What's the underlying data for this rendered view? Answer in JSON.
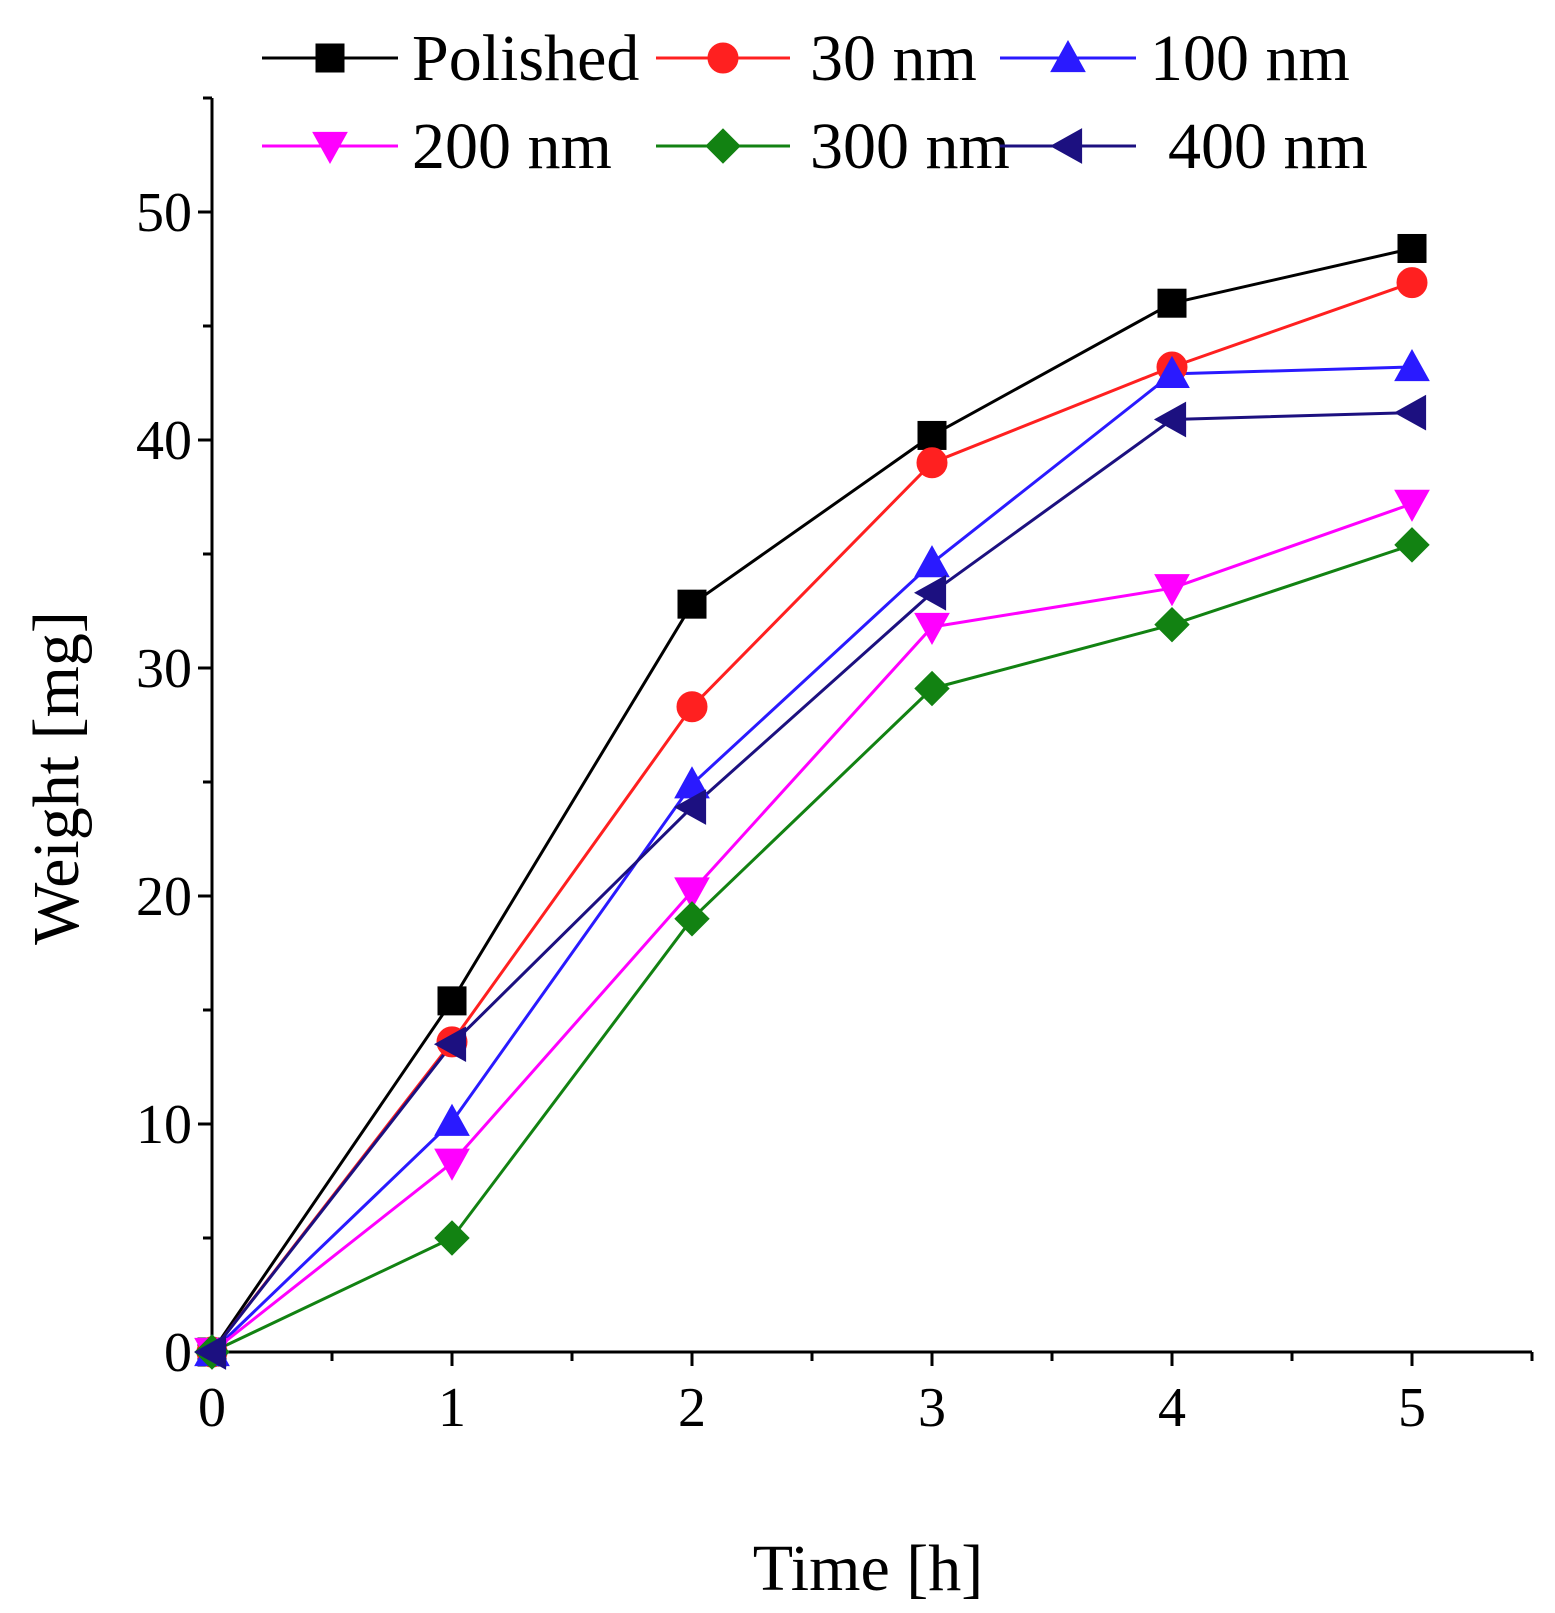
{
  "chart_data": {
    "type": "line",
    "title": "",
    "xlabel": "Time [h]",
    "ylabel": "Weight [mg]",
    "xlim": [
      0,
      5.5
    ],
    "ylim": [
      0,
      55
    ],
    "x_ticks": [
      0,
      1,
      2,
      3,
      4,
      5
    ],
    "y_ticks": [
      0,
      10,
      20,
      30,
      40,
      50
    ],
    "x_minor_ticks": [
      0.5,
      1.5,
      2.5,
      3.5,
      4.5,
      5.5
    ],
    "y_minor_ticks": [
      5,
      15,
      25,
      35,
      45,
      55
    ],
    "legend_position": "top",
    "grid": false,
    "x": [
      0,
      1,
      2,
      3,
      4,
      5
    ],
    "series": [
      {
        "name": "Polished",
        "color": "#000000",
        "marker": "square",
        "values": [
          0,
          15.4,
          32.8,
          40.2,
          46.0,
          48.4
        ]
      },
      {
        "name": "30 nm",
        "color": "#ff2020",
        "marker": "circle",
        "values": [
          0,
          13.6,
          28.3,
          39.0,
          43.2,
          46.9
        ]
      },
      {
        "name": "100 nm",
        "color": "#2a1aff",
        "marker": "triangle-up",
        "values": [
          0,
          10.1,
          24.9,
          34.6,
          42.9,
          43.2
        ]
      },
      {
        "name": "200 nm",
        "color": "#ff00ff",
        "marker": "triangle-down",
        "values": [
          0,
          8.3,
          20.2,
          31.8,
          33.5,
          37.2
        ]
      },
      {
        "name": "300 nm",
        "color": "#128212",
        "marker": "diamond",
        "values": [
          0,
          5.0,
          19.0,
          29.1,
          31.9,
          35.4
        ]
      },
      {
        "name": "400 nm",
        "color": "#1c1080",
        "marker": "triangle-left",
        "values": [
          0,
          13.5,
          23.9,
          33.3,
          40.9,
          41.2
        ]
      }
    ]
  }
}
